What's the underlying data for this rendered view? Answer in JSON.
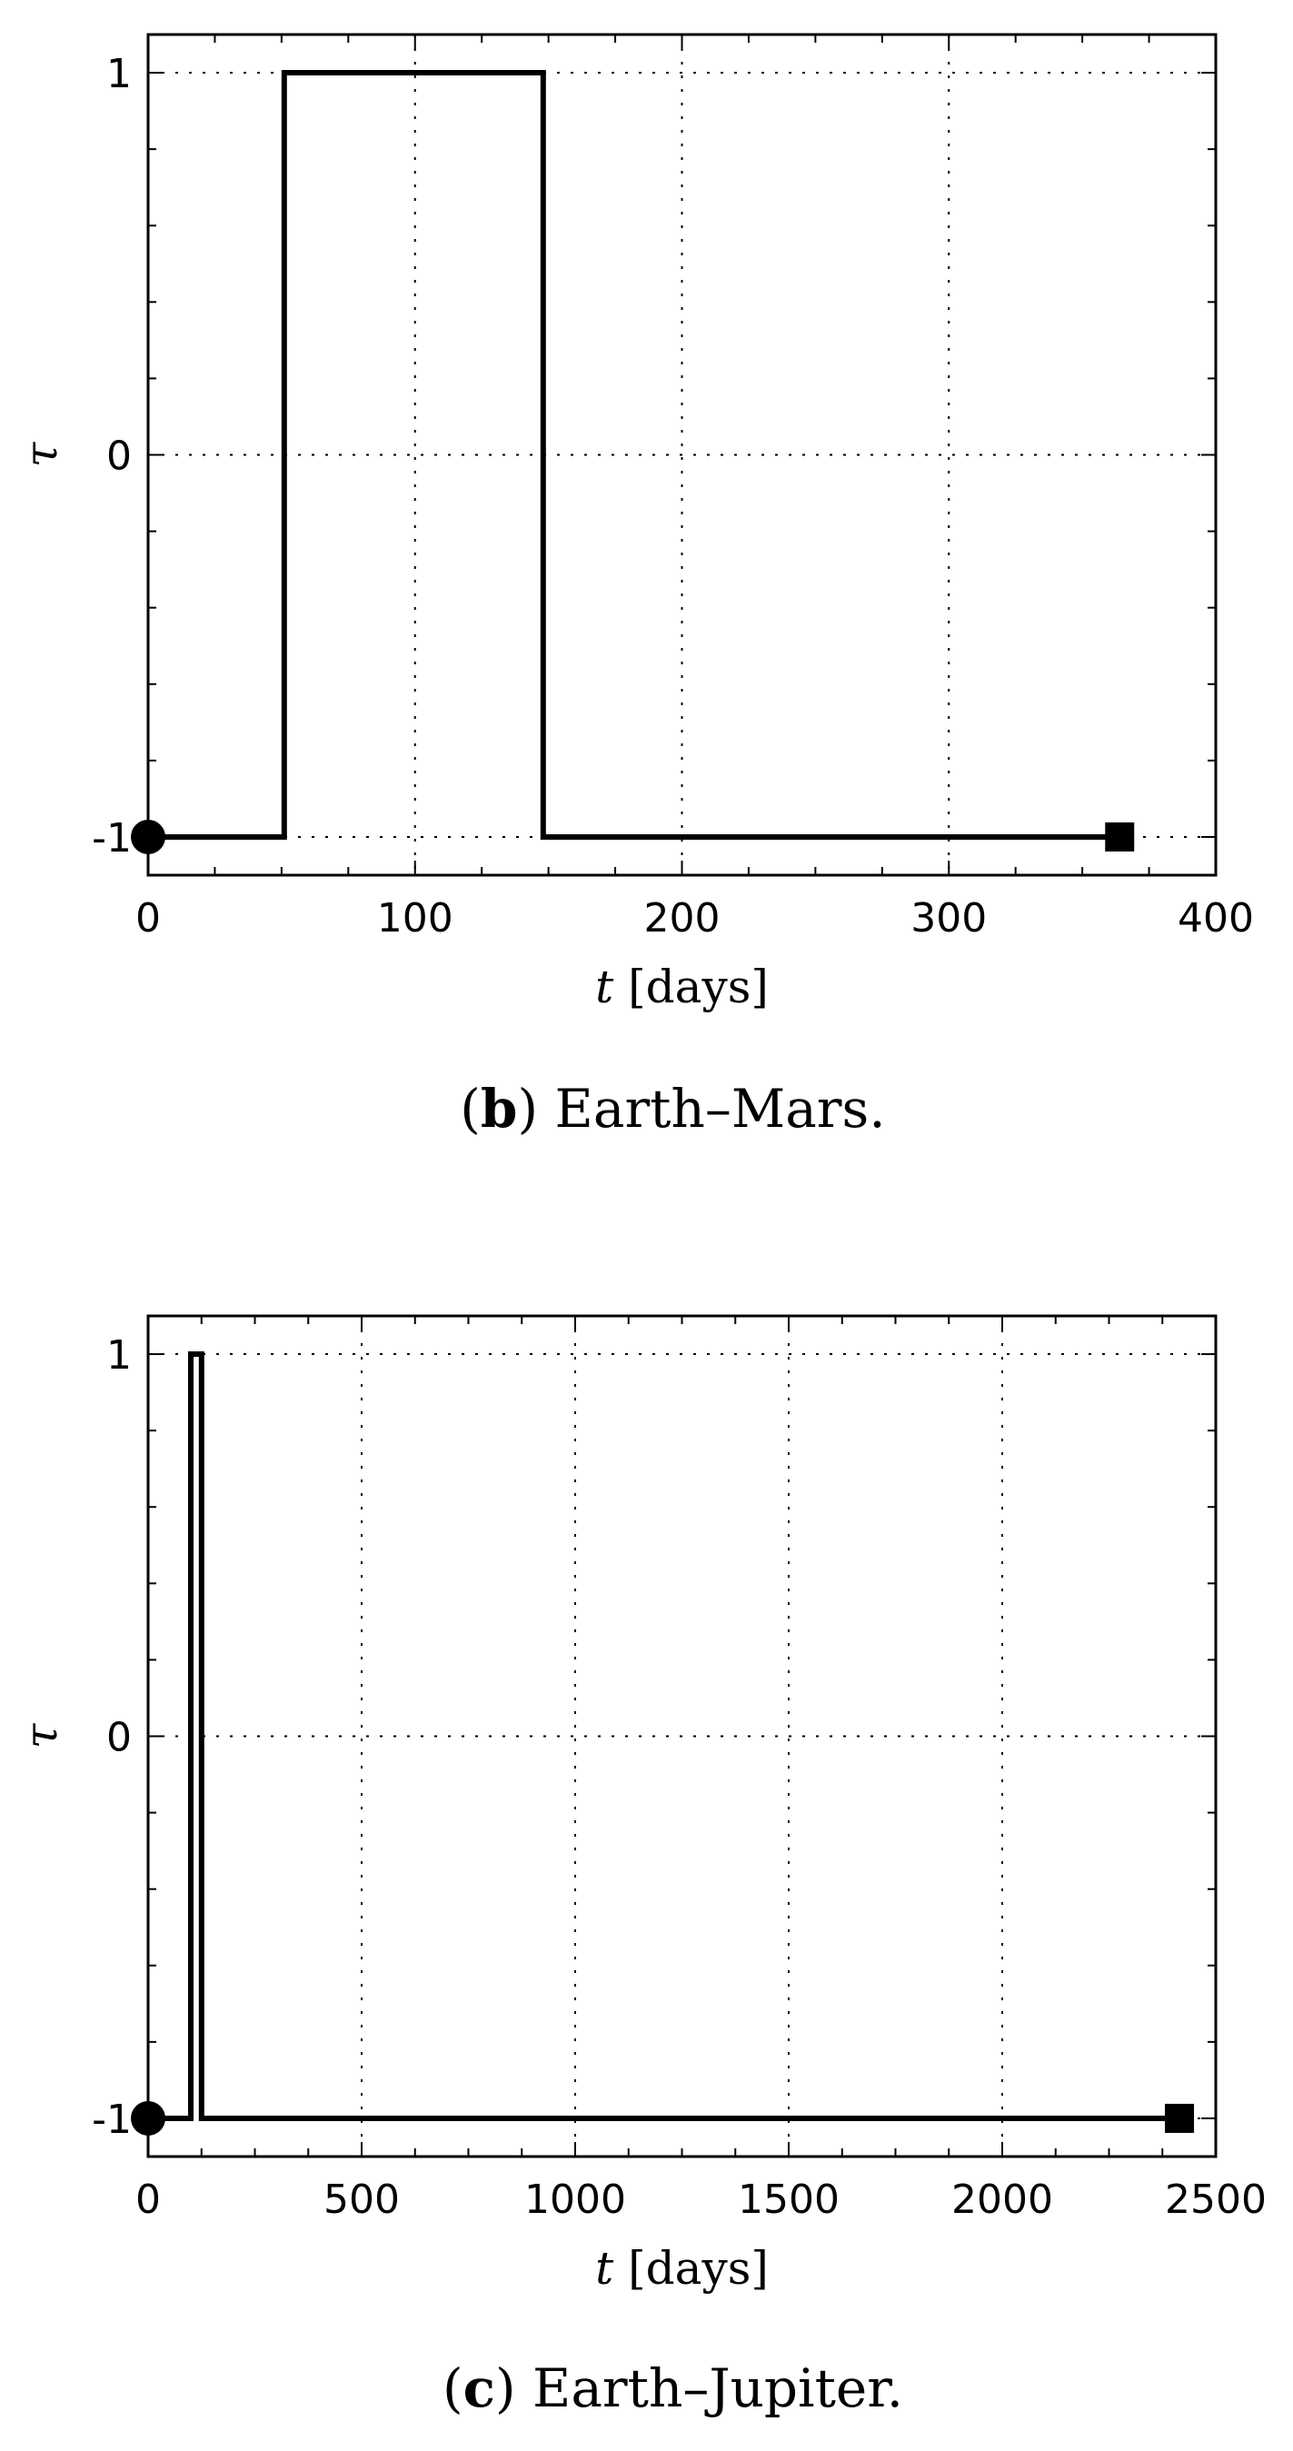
{
  "chart_data": [
    {
      "type": "line",
      "panel_label": "b",
      "caption_text": "Earth–Mars.",
      "xlabel_var": "t",
      "xlabel_unit": "[days]",
      "ylabel": "τ",
      "xlim": [
        0,
        400
      ],
      "ylim": [
        -1.1,
        1.1
      ],
      "xticks": [
        0,
        100,
        200,
        300,
        400
      ],
      "yticks": [
        -1,
        0,
        1
      ],
      "grid": true,
      "series": [
        {
          "x": [
            0,
            51,
            51,
            148,
            148,
            364
          ],
          "y": [
            -1,
            -1,
            1,
            1,
            -1,
            -1
          ]
        }
      ],
      "markers": [
        {
          "shape": "circle",
          "x": 0,
          "y": -1
        },
        {
          "shape": "square",
          "x": 364,
          "y": -1
        }
      ]
    },
    {
      "type": "line",
      "panel_label": "c",
      "caption_text": "Earth–Jupiter.",
      "xlabel_var": "t",
      "xlabel_unit": "[days]",
      "ylabel": "τ",
      "xlim": [
        0,
        2500
      ],
      "ylim": [
        -1.1,
        1.1
      ],
      "xticks": [
        0,
        500,
        1000,
        1500,
        2000,
        2500
      ],
      "yticks": [
        -1,
        0,
        1
      ],
      "grid": true,
      "series": [
        {
          "x": [
            0,
            100,
            100,
            125,
            125,
            2415
          ],
          "y": [
            -1,
            -1,
            1,
            1,
            -1,
            -1
          ]
        }
      ],
      "markers": [
        {
          "shape": "circle",
          "x": 0,
          "y": -1
        },
        {
          "shape": "square",
          "x": 2415,
          "y": -1
        }
      ]
    }
  ]
}
